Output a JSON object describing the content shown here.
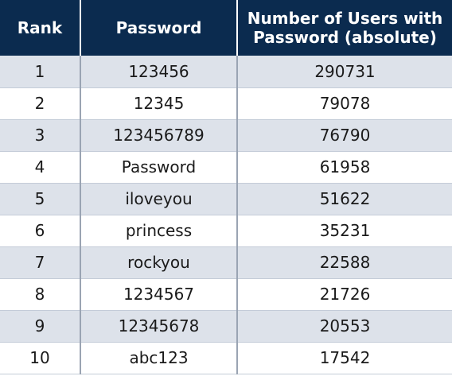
{
  "chart_data": {
    "type": "table",
    "columns": [
      "Rank",
      "Password",
      "Number of Users with Password (absolute)"
    ],
    "header_lines": {
      "users_line1": "Number of Users with",
      "users_line2": "Password (absolute)"
    },
    "rows": [
      {
        "rank": "1",
        "password": "123456",
        "users": "290731"
      },
      {
        "rank": "2",
        "password": "12345",
        "users": "79078"
      },
      {
        "rank": "3",
        "password": "123456789",
        "users": "76790"
      },
      {
        "rank": "4",
        "password": "Password",
        "users": "61958"
      },
      {
        "rank": "5",
        "password": "iloveyou",
        "users": "51622"
      },
      {
        "rank": "6",
        "password": "princess",
        "users": "35231"
      },
      {
        "rank": "7",
        "password": "rockyou",
        "users": "22588"
      },
      {
        "rank": "8",
        "password": "1234567",
        "users": "21726"
      },
      {
        "rank": "9",
        "password": "12345678",
        "users": "20553"
      },
      {
        "rank": "10",
        "password": "abc123",
        "users": "17542"
      }
    ]
  },
  "colors": {
    "header_bg": "#0b2b4f",
    "header_text": "#ffffff",
    "stripe_bg": "#dde2ea",
    "row_bg": "#ffffff"
  }
}
